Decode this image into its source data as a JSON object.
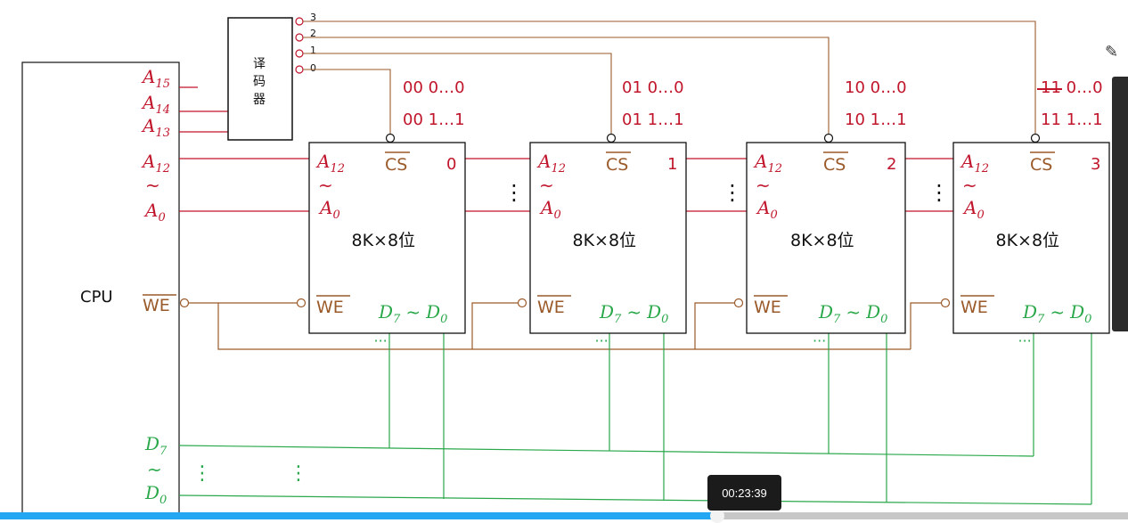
{
  "cpu": {
    "label": "CPU",
    "addr_high": [
      {
        "main": "A",
        "sub": "15"
      },
      {
        "main": "A",
        "sub": "14"
      },
      {
        "main": "A",
        "sub": "13"
      }
    ],
    "addr_low_top": {
      "main": "A",
      "sub": "12"
    },
    "addr_tilde": "~",
    "addr_low_bottom": {
      "main": "A",
      "sub": "0"
    },
    "we": "WE",
    "data_top": {
      "main": "D",
      "sub": "7"
    },
    "data_tilde": "~",
    "data_bottom": {
      "main": "D",
      "sub": "0"
    }
  },
  "decoder": {
    "label_chars": [
      "译",
      "码",
      "器"
    ],
    "outputs": [
      "3",
      "2",
      "1",
      "0"
    ]
  },
  "chips": [
    {
      "index": "0",
      "range_start": "00 0…0",
      "range_end": "00 1…1",
      "capacity": "8K×8位"
    },
    {
      "index": "1",
      "range_start": "01 0…0",
      "range_end": "01 1…1",
      "capacity": "8K×8位"
    },
    {
      "index": "2",
      "range_start": "10 0…0",
      "range_end": "10 1…1",
      "capacity": "8K×8位"
    },
    {
      "index": "3",
      "range_start": "11 0…0",
      "range_end": "11 1…1",
      "capacity": "8K×8位"
    }
  ],
  "chip_pins": {
    "a_top": {
      "main": "A",
      "sub": "12"
    },
    "a_tilde": "~",
    "a_bottom": {
      "main": "A",
      "sub": "0"
    },
    "cs": "CS",
    "we": "WE",
    "data": {
      "d7": "D",
      "d7sub": "7",
      "tilde": "~",
      "d0": "D",
      "d0sub": "0"
    }
  },
  "ellipsis_h": "···",
  "ellipsis_v": "⋮",
  "player": {
    "timestamp": "00:23:39",
    "progress_fraction": 0.636
  },
  "icons": [
    "pen-icon"
  ],
  "colors": {
    "address": "#c0152b",
    "control": "#9a5a2a",
    "data": "#2aa84a",
    "progress": "#23a7f2"
  }
}
